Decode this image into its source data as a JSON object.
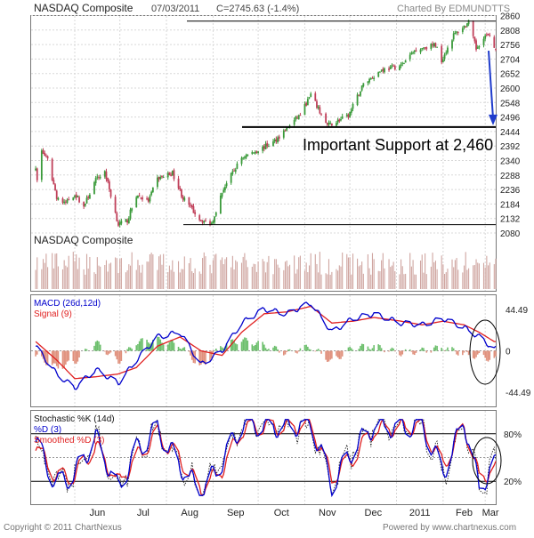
{
  "header": {
    "title": "NASDAQ Composite",
    "date": "07/03/2011",
    "close_info": "C=2745.63 (-1.4%)",
    "charted_by": "Charted By EDMUNDTTS"
  },
  "footer": {
    "copyright": "Copyright © 2011 ChartNexus",
    "powered": "Powered by www.chartnexus.com"
  },
  "colors": {
    "up": "#3a9a3a",
    "down": "#c0405a",
    "volume": "#cfa5a0",
    "macd_line": "#0000cc",
    "signal_line": "#e02020",
    "histogram_up": "#6cbf6c",
    "histogram_down": "#e0907c",
    "arrow": "#1f3ccc",
    "grid": "#d8d8d8"
  },
  "chart_data": [
    {
      "type": "candlestick",
      "title": "NASDAQ Composite",
      "legend_label": "NASDAQ Composite",
      "x_tick_labels": [
        "Jun",
        "Jul",
        "Aug",
        "Sep",
        "Oct",
        "Nov",
        "Dec",
        "2011",
        "Feb",
        "Mar"
      ],
      "y_tick_labels": [
        "2860",
        "2808",
        "2756",
        "2704",
        "2652",
        "2600",
        "2548",
        "2496",
        "2444",
        "2392",
        "2340",
        "2288",
        "2236",
        "2184",
        "2132",
        "2080"
      ],
      "ylim": [
        2080,
        2860
      ],
      "grid": true,
      "trend_points": [
        {
          "date": "2010-05-06",
          "close": 2320
        },
        {
          "date": "2010-05-07",
          "close": 2265
        },
        {
          "date": "2010-05-10",
          "close": 2375
        },
        {
          "date": "2010-05-14",
          "close": 2340
        },
        {
          "date": "2010-05-20",
          "close": 2210
        },
        {
          "date": "2010-05-25",
          "close": 2185
        },
        {
          "date": "2010-06-01",
          "close": 2220
        },
        {
          "date": "2010-06-07",
          "close": 2175
        },
        {
          "date": "2010-06-15",
          "close": 2270
        },
        {
          "date": "2010-06-21",
          "close": 2300
        },
        {
          "date": "2010-06-30",
          "close": 2110
        },
        {
          "date": "2010-07-06",
          "close": 2125
        },
        {
          "date": "2010-07-12",
          "close": 2215
        },
        {
          "date": "2010-07-20",
          "close": 2195
        },
        {
          "date": "2010-07-26",
          "close": 2275
        },
        {
          "date": "2010-08-05",
          "close": 2295
        },
        {
          "date": "2010-08-12",
          "close": 2205
        },
        {
          "date": "2010-08-24",
          "close": 2125
        },
        {
          "date": "2010-08-31",
          "close": 2115
        },
        {
          "date": "2010-09-08",
          "close": 2240
        },
        {
          "date": "2010-09-20",
          "close": 2350
        },
        {
          "date": "2010-09-30",
          "close": 2375
        },
        {
          "date": "2010-10-11",
          "close": 2405
        },
        {
          "date": "2010-10-20",
          "close": 2455
        },
        {
          "date": "2010-10-29",
          "close": 2505
        },
        {
          "date": "2010-11-05",
          "close": 2575
        },
        {
          "date": "2010-11-16",
          "close": 2465
        },
        {
          "date": "2010-11-30",
          "close": 2500
        },
        {
          "date": "2010-12-10",
          "close": 2615
        },
        {
          "date": "2010-12-22",
          "close": 2665
        },
        {
          "date": "2011-01-04",
          "close": 2680
        },
        {
          "date": "2011-01-14",
          "close": 2740
        },
        {
          "date": "2011-01-27",
          "close": 2755
        },
        {
          "date": "2011-01-31",
          "close": 2700
        },
        {
          "date": "2011-02-08",
          "close": 2790
        },
        {
          "date": "2011-02-18",
          "close": 2835
        },
        {
          "date": "2011-02-23",
          "close": 2740
        },
        {
          "date": "2011-02-28",
          "close": 2785
        },
        {
          "date": "2011-03-03",
          "close": 2790
        },
        {
          "date": "2011-03-07",
          "close": 2745
        }
      ],
      "annotations": [
        {
          "text": "Important Support at 2,460",
          "type": "horizontal_line",
          "value": 2460
        },
        {
          "type": "horizontal_line",
          "value": 2840
        },
        {
          "type": "horizontal_line",
          "value": 2110
        },
        {
          "type": "arrow",
          "from": 2740,
          "to": 2460
        }
      ]
    },
    {
      "type": "line",
      "title": "MACD (26d,12d)",
      "series": [
        {
          "name": "MACD (26d,12d)",
          "x": [
            "2010-05-06",
            "2010-05-20",
            "2010-06-01",
            "2010-06-15",
            "2010-06-30",
            "2010-07-12",
            "2010-07-26",
            "2010-08-10",
            "2010-08-24",
            "2010-09-07",
            "2010-09-20",
            "2010-10-05",
            "2010-10-20",
            "2010-11-05",
            "2010-11-19",
            "2010-12-03",
            "2010-12-17",
            "2011-01-04",
            "2011-01-18",
            "2011-02-01",
            "2011-02-15",
            "2011-02-25",
            "2011-03-07"
          ],
          "values": [
            5,
            -25,
            -40,
            -20,
            -35,
            -10,
            15,
            20,
            -15,
            0,
            30,
            45,
            40,
            52,
            20,
            35,
            40,
            30,
            28,
            35,
            25,
            15,
            2
          ]
        },
        {
          "name": "Signal (9)",
          "x": [
            "2010-05-06",
            "2010-05-20",
            "2010-06-01",
            "2010-06-15",
            "2010-06-30",
            "2010-07-12",
            "2010-07-26",
            "2010-08-10",
            "2010-08-24",
            "2010-09-07",
            "2010-09-20",
            "2010-10-05",
            "2010-10-20",
            "2010-11-05",
            "2010-11-19",
            "2010-12-03",
            "2010-12-17",
            "2011-01-04",
            "2011-01-18",
            "2011-02-01",
            "2011-02-15",
            "2011-02-25",
            "2011-03-07"
          ],
          "values": [
            10,
            -10,
            -30,
            -28,
            -25,
            -18,
            5,
            15,
            0,
            -5,
            20,
            40,
            42,
            48,
            30,
            32,
            36,
            32,
            28,
            32,
            28,
            20,
            10
          ]
        }
      ],
      "y_tick_labels": [
        "44.49",
        "0",
        "-44.49"
      ],
      "ylim": [
        -60,
        60
      ]
    },
    {
      "type": "line",
      "title": "Stochastic %K (14d)",
      "series": [
        {
          "name": "%D (3)",
          "x": [
            "2010-05-06",
            "2010-05-20",
            "2010-06-01",
            "2010-06-15",
            "2010-06-30",
            "2010-07-12",
            "2010-07-26",
            "2010-08-10",
            "2010-08-24",
            "2010-09-07",
            "2010-09-20",
            "2010-10-05",
            "2010-10-20",
            "2010-11-05",
            "2010-11-19",
            "2010-12-03",
            "2010-12-17",
            "2011-01-04",
            "2011-01-18",
            "2011-02-01",
            "2011-02-15",
            "2011-02-25",
            "2011-03-07"
          ],
          "values": [
            70,
            15,
            30,
            75,
            10,
            60,
            85,
            40,
            5,
            45,
            92,
            90,
            88,
            94,
            15,
            60,
            90,
            88,
            92,
            30,
            96,
            12,
            40
          ]
        },
        {
          "name": "Smoothed %D (3)",
          "x": [
            "2010-05-06",
            "2010-05-20",
            "2010-06-01",
            "2010-06-15",
            "2010-06-30",
            "2010-07-12",
            "2010-07-26",
            "2010-08-10",
            "2010-08-24",
            "2010-09-07",
            "2010-09-20",
            "2010-10-05",
            "2010-10-20",
            "2010-11-05",
            "2010-11-19",
            "2010-12-03",
            "2010-12-17",
            "2011-01-04",
            "2011-01-18",
            "2011-02-01",
            "2011-02-15",
            "2011-02-25",
            "2011-03-07"
          ],
          "values": [
            65,
            25,
            28,
            65,
            18,
            50,
            80,
            48,
            10,
            35,
            85,
            90,
            88,
            92,
            25,
            50,
            85,
            88,
            90,
            40,
            90,
            25,
            35
          ]
        }
      ],
      "y_tick_labels": [
        "80%",
        "20%"
      ],
      "ylim": [
        0,
        100
      ]
    }
  ]
}
